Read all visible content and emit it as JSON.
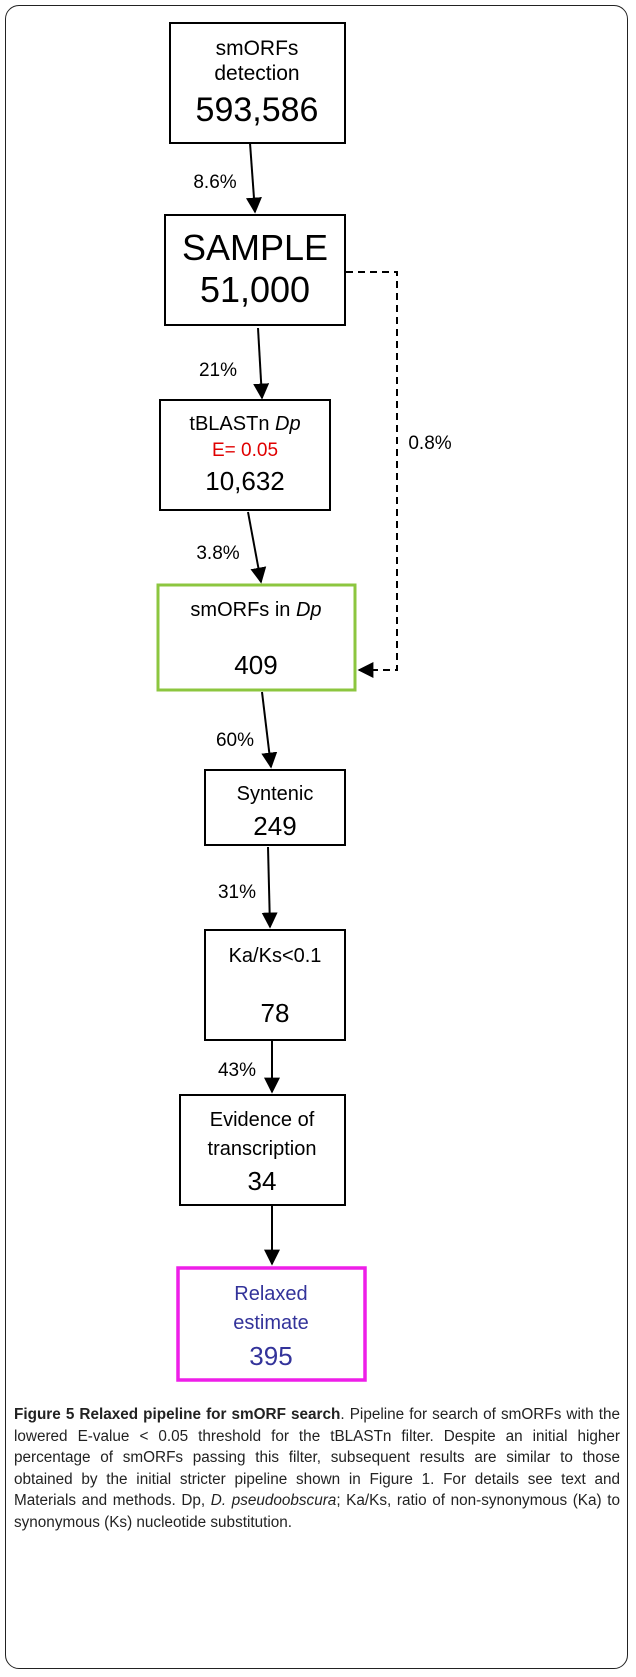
{
  "nodes": [
    {
      "lines": [
        "smORFs",
        "detection"
      ],
      "value": "593,586"
    },
    {
      "lines": [
        "SAMPLE"
      ],
      "value": "51,000"
    },
    {
      "label": "tBLASTn",
      "label_italic": "Dp",
      "sub": "E= 0.05",
      "value": "10,632"
    },
    {
      "label": "smORFs in",
      "label_italic": "Dp",
      "value": "409"
    },
    {
      "lines": [
        "Syntenic"
      ],
      "value": "249"
    },
    {
      "lines": [
        "Ka/Ks<0.1"
      ],
      "value": "78"
    },
    {
      "lines": [
        "Evidence of",
        "transcription"
      ],
      "value": "34"
    },
    {
      "lines": [
        "Relaxed",
        "estimate"
      ],
      "value": "395"
    }
  ],
  "edges": [
    {
      "label": "8.6%"
    },
    {
      "label": "21%"
    },
    {
      "label": "3.8%"
    },
    {
      "label": "60%"
    },
    {
      "label": "31%"
    },
    {
      "label": "43%"
    },
    {
      "label": "0.8%"
    }
  ],
  "caption": {
    "title": "Figure 5 Relaxed pipeline for smORF search",
    "text1": ". Pipeline for search of smORFs with the lowered E-value < 0.05 threshold for the tBLASTn filter. Despite an initial higher percentage of smORFs passing this filter, subsequent results are similar to those obtained by the initial stricter pipeline shown in Figure 1. For details see text and Materials and methods. Dp, ",
    "italic": "D. pseudoobscura",
    "text2": "; Ka/Ks, ratio of non-synonymous (Ka) to synonymous (Ks) nucleotide substitution."
  }
}
